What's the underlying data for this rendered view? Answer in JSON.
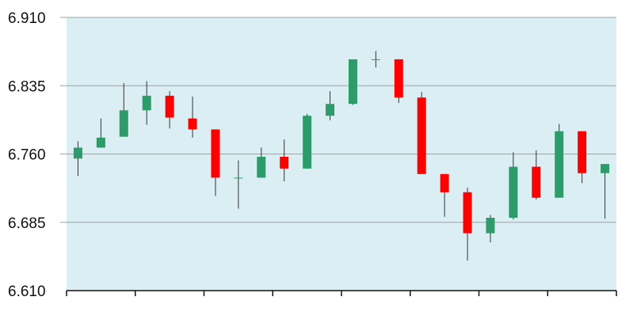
{
  "chart_data": {
    "type": "candlestick",
    "title": "",
    "xlabel": "",
    "ylabel": "",
    "ylim": [
      6.61,
      6.91
    ],
    "yticks": [
      "6.910",
      "6.835",
      "6.760",
      "6.685",
      "6.610"
    ],
    "grid": "horizontal",
    "legend": "none",
    "colors": {
      "background": "#dbeef3",
      "gridline": "#9aa3a6",
      "up": "#2e9b6a",
      "down": "#fd0000",
      "wick": "#333333",
      "axis": "#111111"
    },
    "candles": [
      {
        "open": 6.755,
        "close": 6.767,
        "high": 6.774,
        "low": 6.736
      },
      {
        "open": 6.767,
        "close": 6.778,
        "high": 6.799,
        "low": 6.767
      },
      {
        "open": 6.779,
        "close": 6.808,
        "high": 6.838,
        "low": 6.779
      },
      {
        "open": 6.808,
        "close": 6.824,
        "high": 6.84,
        "low": 6.792
      },
      {
        "open": 6.824,
        "close": 6.8,
        "high": 6.829,
        "low": 6.788
      },
      {
        "open": 6.799,
        "close": 6.787,
        "high": 6.823,
        "low": 6.778
      },
      {
        "open": 6.787,
        "close": 6.734,
        "high": 6.787,
        "low": 6.714
      },
      {
        "open": 6.734,
        "close": 6.734,
        "high": 6.753,
        "low": 6.7
      },
      {
        "open": 6.734,
        "close": 6.757,
        "high": 6.767,
        "low": 6.734
      },
      {
        "open": 6.757,
        "close": 6.744,
        "high": 6.776,
        "low": 6.73
      },
      {
        "open": 6.744,
        "close": 6.802,
        "high": 6.804,
        "low": 6.744
      },
      {
        "open": 6.802,
        "close": 6.815,
        "high": 6.829,
        "low": 6.797
      },
      {
        "open": 6.815,
        "close": 6.864,
        "high": 6.864,
        "low": 6.814
      },
      {
        "open": 6.864,
        "close": 6.864,
        "high": 6.873,
        "low": 6.855
      },
      {
        "open": 6.864,
        "close": 6.822,
        "high": 6.864,
        "low": 6.816
      },
      {
        "open": 6.822,
        "close": 6.738,
        "high": 6.828,
        "low": 6.738
      },
      {
        "open": 6.738,
        "close": 6.718,
        "high": 6.738,
        "low": 6.691
      },
      {
        "open": 6.718,
        "close": 6.673,
        "high": 6.723,
        "low": 6.643
      },
      {
        "open": 6.673,
        "close": 6.69,
        "high": 6.693,
        "low": 6.663
      },
      {
        "open": 6.69,
        "close": 6.746,
        "high": 6.762,
        "low": 6.688
      },
      {
        "open": 6.746,
        "close": 6.712,
        "high": 6.764,
        "low": 6.71
      },
      {
        "open": 6.712,
        "close": 6.785,
        "high": 6.793,
        "low": 6.712
      },
      {
        "open": 6.785,
        "close": 6.739,
        "high": 6.785,
        "low": 6.728
      },
      {
        "open": 6.739,
        "close": 6.749,
        "high": 6.749,
        "low": 6.689
      }
    ]
  }
}
